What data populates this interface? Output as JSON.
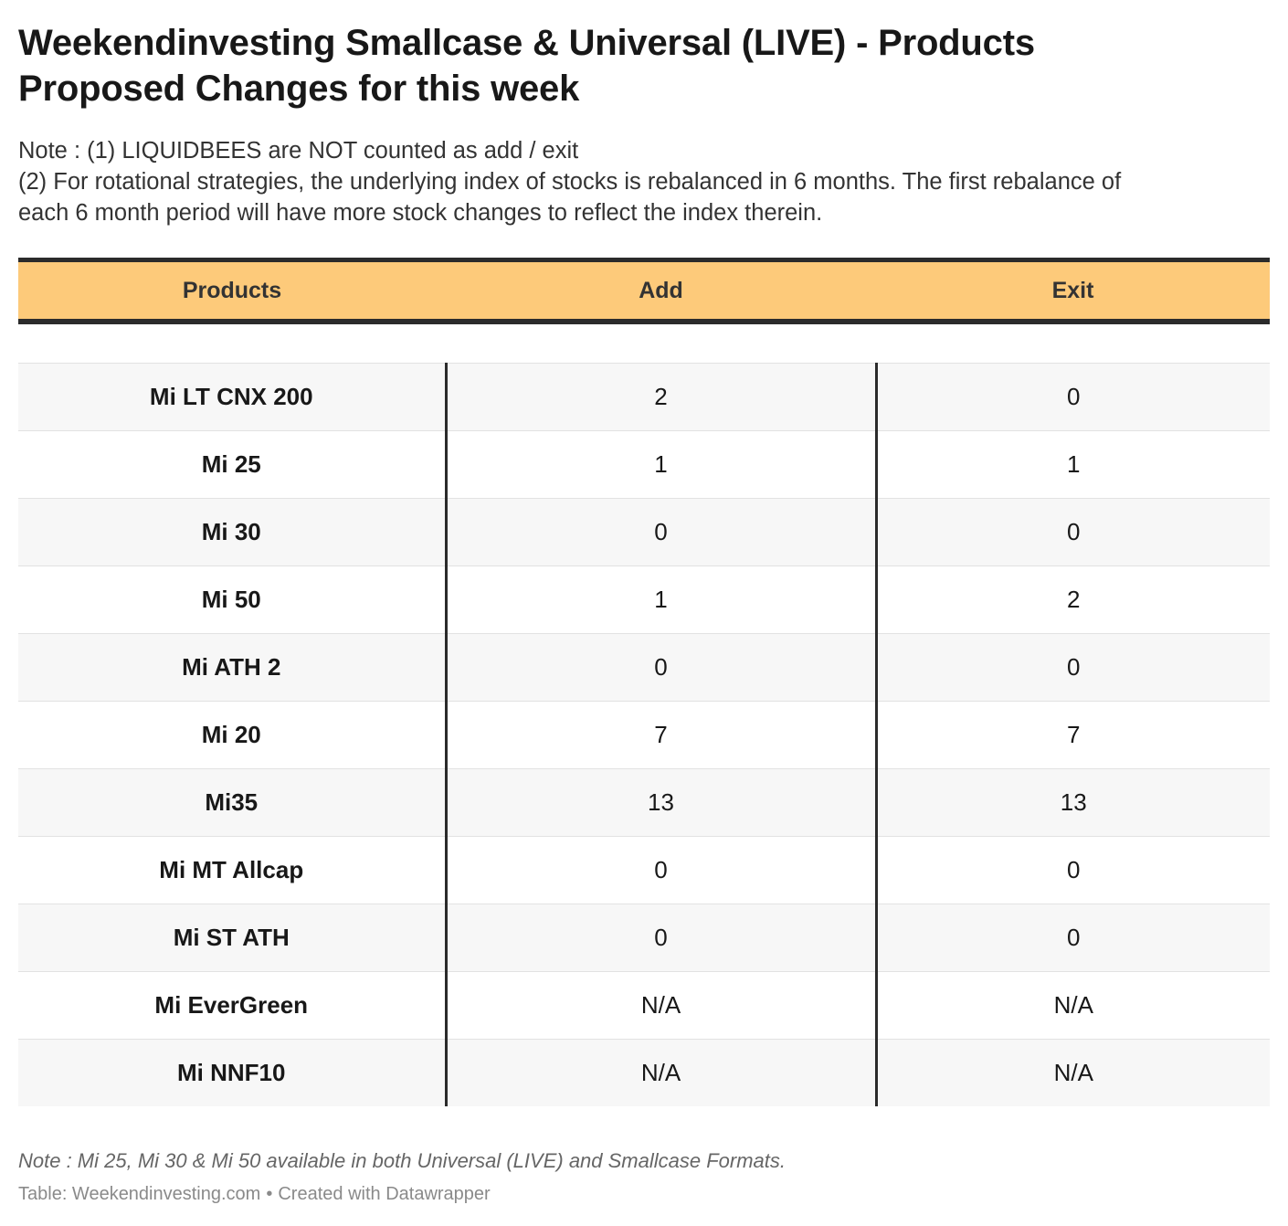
{
  "header": {
    "title_line1": "Weekendinvesting Smallcase & Universal (LIVE) - Products",
    "title_line2": "Proposed Changes for this week",
    "notes": [
      "Note : (1) LIQUIDBEES are NOT counted as add / exit",
      "(2) For rotational strategies, the underlying index of stocks is rebalanced in 6 months. The first rebalance of",
      "each 6 month period will have more stock changes to reflect the index therein."
    ]
  },
  "table": {
    "columns": [
      "Products",
      "Add",
      "Exit"
    ],
    "rows": [
      {
        "product": "Mi LT CNX 200",
        "add": "2",
        "exit": "0"
      },
      {
        "product": "Mi 25",
        "add": "1",
        "exit": "1"
      },
      {
        "product": "Mi 30",
        "add": "0",
        "exit": "0"
      },
      {
        "product": "Mi 50",
        "add": "1",
        "exit": "2"
      },
      {
        "product": "Mi ATH 2",
        "add": "0",
        "exit": "0"
      },
      {
        "product": "Mi 20",
        "add": "7",
        "exit": "7"
      },
      {
        "product": "Mi35",
        "add": "13",
        "exit": "13"
      },
      {
        "product": "Mi MT Allcap",
        "add": "0",
        "exit": "0"
      },
      {
        "product": "Mi ST ATH",
        "add": "0",
        "exit": "0"
      },
      {
        "product": "Mi EverGreen",
        "add": "N/A",
        "exit": "N/A"
      },
      {
        "product": "Mi NNF10",
        "add": "N/A",
        "exit": "N/A"
      }
    ]
  },
  "footer": {
    "note": "Note : Mi 25, Mi 30 & Mi 50 available in both Universal (LIVE) and Smallcase Formats.",
    "source": "Table: Weekendinvesting.com",
    "separator": "•",
    "created_with": "Created with Datawrapper"
  },
  "colors": {
    "header_background": "#fdca7a",
    "rule": "#2b2b2b",
    "row_shade": "#f7f7f7"
  }
}
